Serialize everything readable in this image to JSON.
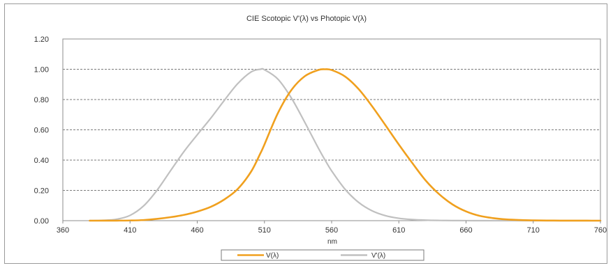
{
  "chart_data": {
    "type": "line",
    "title": "CIE Scotopic V'(λ) vs Photopic V(λ)",
    "xlabel": "nm",
    "ylabel": "",
    "xlim": [
      360,
      760
    ],
    "ylim": [
      0,
      1.2
    ],
    "x_ticks": [
      "360",
      "410",
      "460",
      "510",
      "560",
      "610",
      "660",
      "710",
      "760"
    ],
    "y_ticks": [
      "0.00",
      "0.20",
      "0.40",
      "0.60",
      "0.80",
      "1.00",
      "1.20"
    ],
    "grid": "horizontal-dashed",
    "legend_position": "bottom",
    "x": [
      380,
      390,
      400,
      410,
      420,
      430,
      440,
      450,
      460,
      470,
      480,
      490,
      500,
      507,
      510,
      520,
      530,
      540,
      550,
      555,
      560,
      570,
      580,
      590,
      600,
      610,
      620,
      630,
      640,
      650,
      660,
      670,
      680,
      690,
      700,
      710,
      720,
      730,
      740,
      750,
      760
    ],
    "series": [
      {
        "name": "V(λ)",
        "color": "#f0a01e",
        "values": [
          0.0,
          0.0001,
          0.0004,
          0.0012,
          0.004,
          0.0116,
          0.023,
          0.038,
          0.06,
          0.091,
          0.139,
          0.208,
          0.323,
          0.445,
          0.503,
          0.71,
          0.862,
          0.954,
          0.995,
          1.0,
          0.995,
          0.952,
          0.87,
          0.757,
          0.631,
          0.503,
          0.381,
          0.265,
          0.175,
          0.107,
          0.061,
          0.032,
          0.017,
          0.0082,
          0.0041,
          0.0021,
          0.001,
          0.0005,
          0.0002,
          0.0001,
          0.0
        ]
      },
      {
        "name": "V'(λ)",
        "color": "#c0c0c0",
        "values": [
          0.0006,
          0.0022,
          0.0093,
          0.0348,
          0.0966,
          0.1998,
          0.3281,
          0.455,
          0.567,
          0.676,
          0.793,
          0.904,
          0.982,
          1.0,
          0.997,
          0.935,
          0.811,
          0.65,
          0.481,
          0.402,
          0.3288,
          0.2076,
          0.1212,
          0.0655,
          0.0332,
          0.0159,
          0.0074,
          0.0033,
          0.0015,
          0.0007,
          0.0003,
          0.0001,
          0.0001,
          0.0,
          0.0,
          0.0,
          0.0,
          0.0,
          0.0,
          0.0,
          0.0
        ]
      }
    ]
  }
}
